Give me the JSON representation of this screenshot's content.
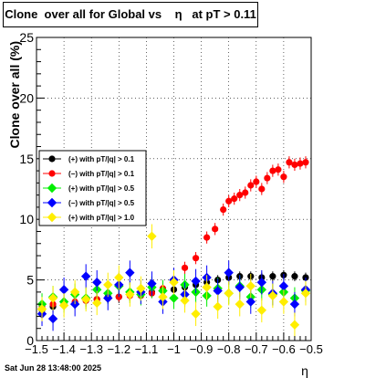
{
  "title": "Clone  over all for Global vs    η   at pT > 0.11",
  "footer": "Sat Jun 28 13:48:00 2025",
  "chart_data": {
    "type": "scatter",
    "title": "Clone  over all for Global vs    η   at pT > 0.11",
    "xlabel": "η",
    "ylabel": "Clone  over all (%)",
    "xlim": [
      -1.5,
      -0.5
    ],
    "ylim": [
      0,
      25
    ],
    "x_ticks": [
      "−1.5",
      "−1.4",
      "−1.3",
      "−1.2",
      "−1.1",
      "−1",
      "−0.9",
      "−0.8",
      "−0.7",
      "−0.6",
      "−0.5"
    ],
    "y_ticks": [
      "0",
      "5",
      "10",
      "15",
      "20",
      "25"
    ],
    "legend_position": "center-left",
    "series": [
      {
        "name": "(+) with pT/|q| > 0.1",
        "color": "#000000",
        "marker": "circle",
        "x": [
          -1.48,
          -1.44,
          -1.4,
          -1.36,
          -1.32,
          -1.28,
          -1.24,
          -1.2,
          -1.16,
          -1.12,
          -1.08,
          -1.04,
          -1.0,
          -0.96,
          -0.92,
          -0.88,
          -0.84,
          -0.8,
          -0.76,
          -0.72,
          -0.68,
          -0.64,
          -0.6,
          -0.56,
          -0.52
        ],
        "y": [
          2.5,
          2.8,
          3.0,
          3.1,
          3.3,
          3.4,
          3.6,
          3.6,
          3.8,
          3.9,
          4.0,
          4.1,
          4.2,
          4.4,
          4.6,
          4.8,
          5.0,
          5.2,
          5.3,
          5.3,
          5.2,
          5.3,
          5.4,
          5.3,
          5.2
        ],
        "yerr": [
          0.5,
          0.5,
          0.5,
          0.5,
          0.5,
          0.5,
          0.5,
          0.5,
          0.5,
          0.5,
          0.5,
          0.5,
          0.5,
          0.5,
          0.5,
          0.5,
          0.4,
          0.4,
          0.4,
          0.4,
          0.4,
          0.4,
          0.4,
          0.4,
          0.4
        ]
      },
      {
        "name": "(−) with pT/|q| > 0.1",
        "color": "#ff0000",
        "marker": "circle",
        "x": [
          -1.48,
          -1.44,
          -1.4,
          -1.36,
          -1.32,
          -1.28,
          -1.24,
          -1.2,
          -1.16,
          -1.12,
          -1.08,
          -1.04,
          -1.0,
          -0.96,
          -0.92,
          -0.88,
          -0.85,
          -0.82,
          -0.8,
          -0.78,
          -0.76,
          -0.74,
          -0.72,
          -0.7,
          -0.68,
          -0.66,
          -0.64,
          -0.62,
          -0.6,
          -0.58,
          -0.56,
          -0.54,
          -0.52
        ],
        "y": [
          2.8,
          3.0,
          3.1,
          3.2,
          3.3,
          3.4,
          3.5,
          3.6,
          3.7,
          3.7,
          3.9,
          4.3,
          5.0,
          6.0,
          6.8,
          8.5,
          9.2,
          10.8,
          11.5,
          11.7,
          12.0,
          12.2,
          12.8,
          13.1,
          12.5,
          13.4,
          14.0,
          14.1,
          13.5,
          14.7,
          14.5,
          14.6,
          14.7
        ],
        "yerr": [
          0.4,
          0.4,
          0.4,
          0.4,
          0.4,
          0.4,
          0.4,
          0.4,
          0.4,
          0.4,
          0.4,
          0.4,
          0.5,
          0.5,
          0.5,
          0.5,
          0.5,
          0.5,
          0.5,
          0.5,
          0.5,
          0.5,
          0.5,
          0.5,
          0.5,
          0.5,
          0.5,
          0.5,
          0.5,
          0.5,
          0.5,
          0.5,
          0.5
        ]
      },
      {
        "name": "(+) with pT/|q| > 0.5",
        "color": "#00ee00",
        "marker": "diamond",
        "x": [
          -1.48,
          -1.44,
          -1.4,
          -1.36,
          -1.32,
          -1.28,
          -1.24,
          -1.2,
          -1.16,
          -1.12,
          -1.08,
          -1.04,
          -1.0,
          -0.96,
          -0.92,
          -0.88,
          -0.84,
          -0.8,
          -0.76,
          -0.72,
          -0.68,
          -0.64,
          -0.6,
          -0.56,
          -0.52
        ],
        "y": [
          3.0,
          3.6,
          3.2,
          3.8,
          3.5,
          4.2,
          3.9,
          4.5,
          4.0,
          3.8,
          4.4,
          4.1,
          3.5,
          4.6,
          4.0,
          3.7,
          4.3,
          3.9,
          4.5,
          3.6,
          4.2,
          3.8,
          4.0,
          3.5,
          4.1
        ],
        "yerr": [
          0.9,
          0.9,
          0.9,
          0.9,
          0.9,
          0.9,
          0.9,
          0.9,
          0.9,
          0.9,
          0.9,
          0.9,
          0.9,
          0.9,
          0.9,
          0.9,
          0.9,
          0.9,
          0.9,
          0.9,
          0.9,
          0.9,
          0.9,
          0.9,
          0.9
        ]
      },
      {
        "name": "(−) with pT/|q| > 0.5",
        "color": "#0000ff",
        "marker": "diamond",
        "x": [
          -1.48,
          -1.44,
          -1.4,
          -1.36,
          -1.32,
          -1.28,
          -1.24,
          -1.2,
          -1.16,
          -1.12,
          -1.08,
          -1.04,
          -1.0,
          -0.96,
          -0.92,
          -0.88,
          -0.84,
          -0.8,
          -0.76,
          -0.72,
          -0.68,
          -0.64,
          -0.6,
          -0.56,
          -0.52
        ],
        "y": [
          2.2,
          1.8,
          4.2,
          3.0,
          5.3,
          4.8,
          3.5,
          4.6,
          5.6,
          4.0,
          4.7,
          3.2,
          5.0,
          3.8,
          4.9,
          5.2,
          4.1,
          5.6,
          4.4,
          3.2,
          4.8,
          3.9,
          4.5,
          3.0,
          4.2
        ],
        "yerr": [
          1.0,
          1.0,
          1.0,
          1.0,
          1.0,
          1.0,
          1.0,
          1.0,
          1.0,
          1.0,
          1.0,
          1.0,
          1.0,
          1.0,
          1.0,
          1.0,
          1.0,
          1.0,
          1.0,
          1.0,
          1.0,
          1.0,
          1.0,
          1.0,
          1.0
        ]
      },
      {
        "name": "(+) with pT/|q| > 1.0",
        "color": "#ffee00",
        "marker": "diamond",
        "x": [
          -1.48,
          -1.44,
          -1.4,
          -1.36,
          -1.32,
          -1.28,
          -1.24,
          -1.2,
          -1.16,
          -1.12,
          -1.08,
          -1.04,
          -1.0,
          -0.96,
          -0.92,
          -0.88,
          -0.84,
          -0.8,
          -0.76,
          -0.72,
          -0.68,
          -0.64,
          -0.6,
          -0.56,
          -0.52
        ],
        "y": [
          2.6,
          3.5,
          2.9,
          4.0,
          3.4,
          3.1,
          4.6,
          5.2,
          3.8,
          4.3,
          8.6,
          3.6,
          4.8,
          3.3,
          2.2,
          4.4,
          2.8,
          3.9,
          3.0,
          4.5,
          2.5,
          3.7,
          3.2,
          1.3,
          3.9
        ],
        "yerr": [
          1.0,
          1.0,
          1.0,
          1.0,
          1.0,
          1.0,
          1.0,
          1.0,
          1.0,
          1.0,
          1.0,
          1.0,
          1.0,
          1.0,
          1.0,
          1.0,
          1.0,
          1.0,
          1.0,
          1.0,
          1.0,
          1.0,
          1.0,
          1.0,
          1.0
        ]
      }
    ]
  }
}
